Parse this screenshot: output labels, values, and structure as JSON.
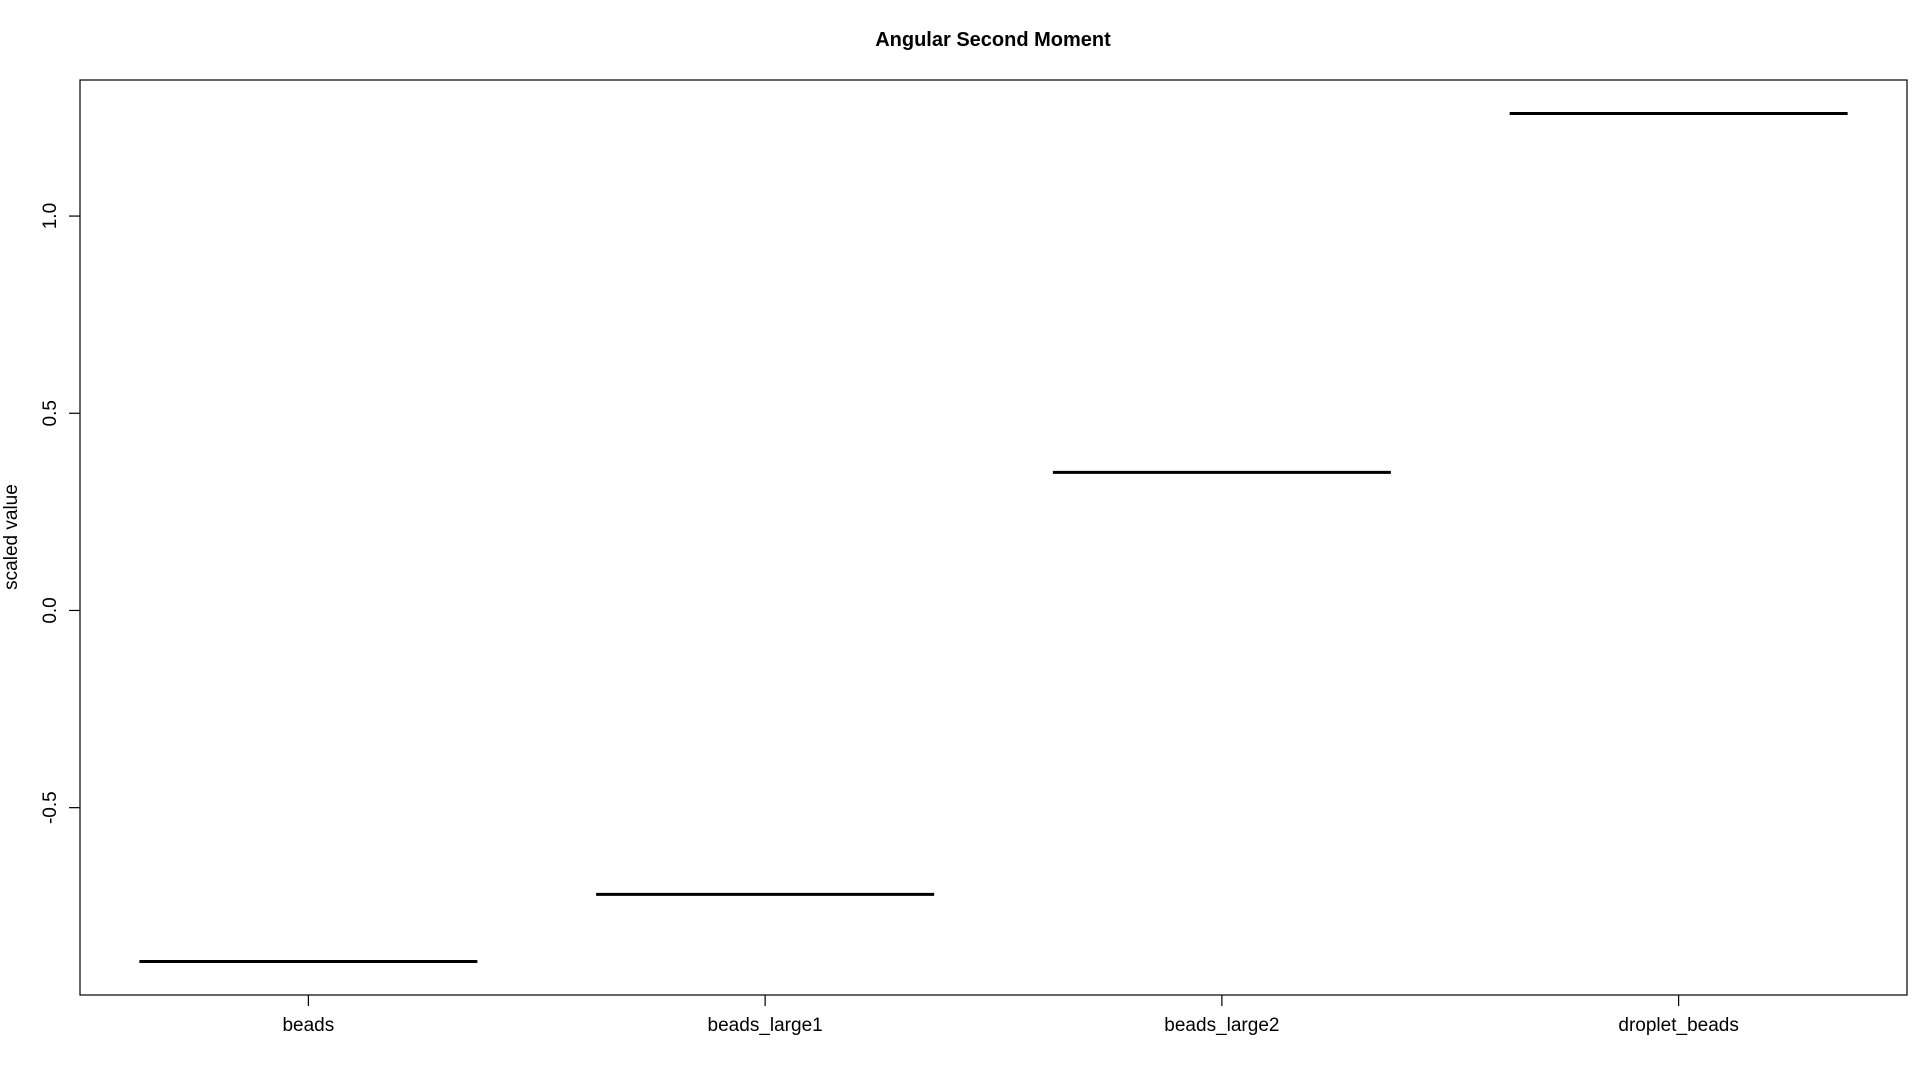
{
  "chart_data": {
    "type": "bar",
    "title": "Angular Second Moment",
    "xlabel": "",
    "ylabel": "scaled value",
    "categories": [
      "beads",
      "beads_large1",
      "beads_large2",
      "droplet_beads"
    ],
    "values": [
      -0.89,
      -0.72,
      0.35,
      1.26
    ],
    "ylim": [
      -0.975,
      1.345
    ],
    "yticks": [
      -0.5,
      0.0,
      0.5,
      1.0
    ],
    "ytick_labels": [
      "-0.5",
      "0.0",
      "0.5",
      "1.0"
    ],
    "grid": false,
    "legend": "none",
    "mark_style": "horizontal median line per category",
    "colors": {
      "marks": "#000000",
      "background": "#ffffff"
    }
  }
}
